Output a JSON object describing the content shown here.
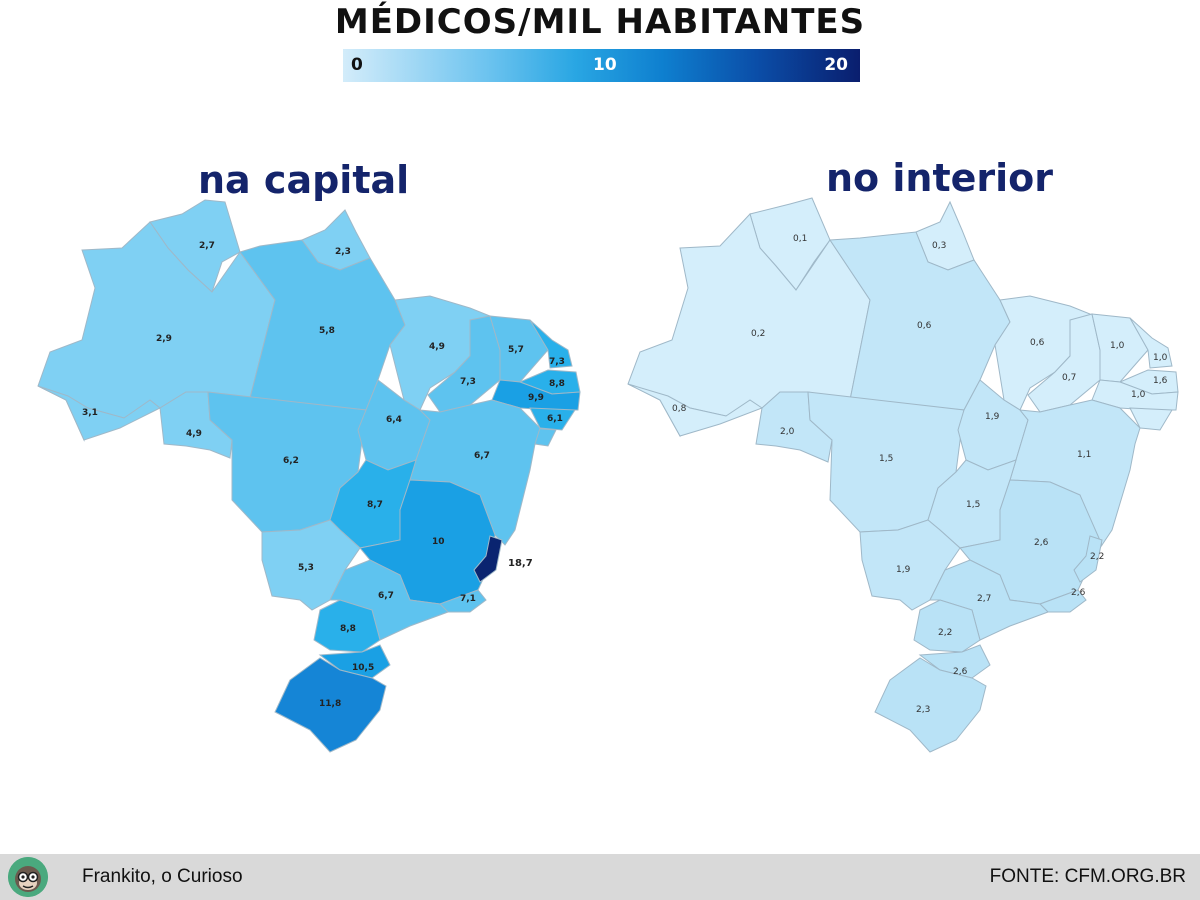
{
  "title": "MÉDICOS/MIL HABITANTES",
  "scale": {
    "min": "0",
    "mid": "10",
    "max": "20"
  },
  "maps": {
    "capital": {
      "title": "na capital",
      "values": {
        "RR": "2,7",
        "AP": "2,3",
        "AM": "2,9",
        "PA": "5,8",
        "MA": "4,9",
        "CE": "5,7",
        "RN": "7,3",
        "PB": "8,8",
        "PE": "9,9",
        "AL": "6,1",
        "PI": "7,3",
        "AC": "3,1",
        "RO": "4,9",
        "MT": "6,2",
        "TO": "6,4",
        "BA": "6,7",
        "GO": "8,7",
        "MG": "10",
        "ES": "18,7",
        "MS": "5,3",
        "SP": "6,7",
        "RJ": "7,1",
        "PR": "8,8",
        "SC": "10,5",
        "RS": "11,8"
      }
    },
    "interior": {
      "title": "no interior",
      "values": {
        "RR": "0,1",
        "AP": "0,3",
        "AM": "0,2",
        "PA": "0,6",
        "MA": "0,6",
        "CE": "1,0",
        "RN": "1,0",
        "PB": "1,6",
        "PE": "1,0",
        "PI": "0,7",
        "AC": "0,8",
        "RO": "2,0",
        "MT": "1,5",
        "TO": "1,9",
        "BA": "1,1",
        "GO": "1,5",
        "MG": "2,6",
        "ES": "2,2",
        "RJ": "2,6",
        "MS": "1,9",
        "SP": "2,7",
        "PR": "2,2",
        "SC": "2,6",
        "RS": "2,3"
      }
    }
  },
  "colors": {
    "capital_ES": "#0a2470",
    "capital_RS": "#1585d6",
    "capital_MG": "#1aa0e4",
    "capital_mid": "#29b0ea",
    "capital_light": "#5ec3ef",
    "capital_lighter": "#7fd0f3",
    "interior_fill": "#c2e6f8",
    "interior_lighter": "#d4eefb"
  },
  "footer": {
    "credit": "Frankito, o Curioso",
    "source": "FONTE: CFM.ORG.BR"
  }
}
